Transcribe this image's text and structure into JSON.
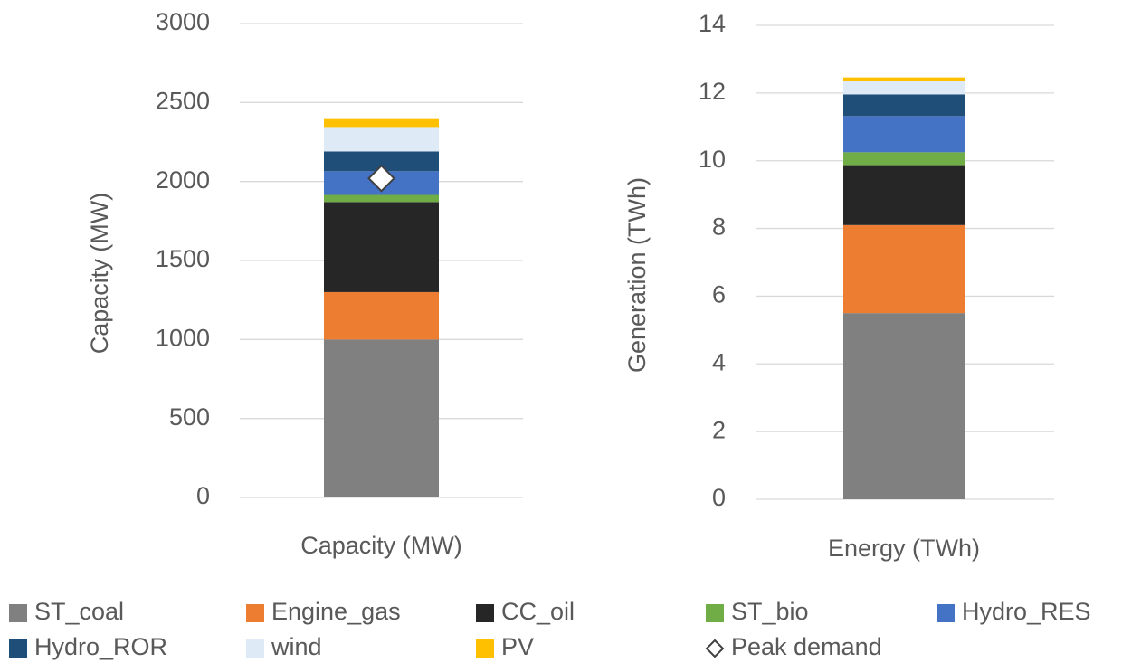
{
  "chart_data": [
    {
      "type": "stacked_bar",
      "ylabel": "Capacity (MW)",
      "categories": [
        "Capacity (MW)"
      ],
      "ylim": [
        0,
        3000
      ],
      "yticks": [
        0,
        500,
        1000,
        1500,
        2000,
        2500,
        3000
      ],
      "grid": true,
      "series": [
        {
          "name": "ST_coal",
          "color": "#808080",
          "values": [
            1000
          ]
        },
        {
          "name": "Engine_gas",
          "color": "#ed7d31",
          "values": [
            300
          ]
        },
        {
          "name": "CC_oil",
          "color": "#262626",
          "values": [
            570
          ]
        },
        {
          "name": "ST_bio",
          "color": "#70ad47",
          "values": [
            45
          ]
        },
        {
          "name": "Hydro_RES",
          "color": "#4472c4",
          "values": [
            150
          ]
        },
        {
          "name": "Hydro_ROR",
          "color": "#1f4e79",
          "values": [
            125
          ]
        },
        {
          "name": "wind",
          "color": "#deebf7",
          "values": [
            155
          ]
        },
        {
          "name": "PV",
          "color": "#ffc000",
          "values": [
            50
          ]
        }
      ],
      "marker": {
        "name": "Peak demand",
        "values": [
          2020
        ]
      }
    },
    {
      "type": "stacked_bar",
      "ylabel": "Generation (TWh)",
      "categories": [
        "Energy (TWh)"
      ],
      "ylim": [
        0,
        14
      ],
      "yticks": [
        0,
        2,
        4,
        6,
        8,
        10,
        12,
        14
      ],
      "grid": true,
      "series": [
        {
          "color": "#808080",
          "values": [
            5.5
          ]
        },
        {
          "color": "#ed7d31",
          "values": [
            2.6
          ]
        },
        {
          "color": "#262626",
          "values": [
            1.77
          ]
        },
        {
          "color": "#70ad47",
          "values": [
            0.38
          ]
        },
        {
          "color": "#4472c4",
          "values": [
            1.07
          ]
        },
        {
          "color": "#1f4e79",
          "values": [
            0.64
          ]
        },
        {
          "color": "#deebf7",
          "values": [
            0.4
          ]
        },
        {
          "color": "#ffc000",
          "values": [
            0.1
          ]
        }
      ]
    }
  ]
}
